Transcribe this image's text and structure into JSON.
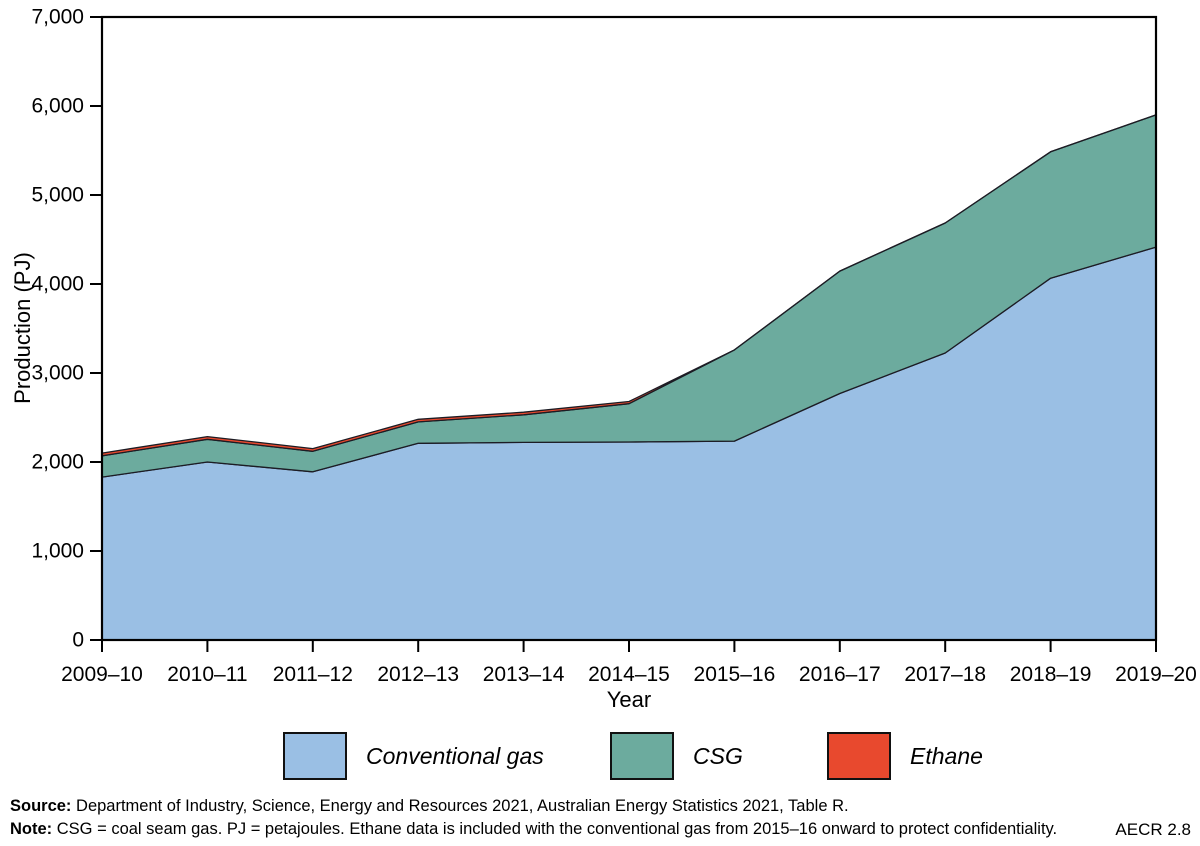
{
  "chart_data": {
    "type": "area",
    "stacked": true,
    "title": "",
    "xlabel": "Year",
    "ylabel": "Production (PJ)",
    "ylim": [
      0,
      7000
    ],
    "ytick_step": 1000,
    "grid": false,
    "legend_position": "bottom",
    "categories": [
      "2009–10",
      "2010–11",
      "2011–12",
      "2012–13",
      "2013–14",
      "2014–15",
      "2015–16",
      "2016–17",
      "2017–18",
      "2018–19",
      "2019–20"
    ],
    "series": [
      {
        "name": "Conventional gas",
        "color": "#9abfe4",
        "values": [
          1830,
          2000,
          1890,
          2210,
          2220,
          2225,
          2235,
          2770,
          3225,
          4065,
          4415
        ]
      },
      {
        "name": "CSG",
        "color": "#6cab9e",
        "values": [
          240,
          255,
          230,
          240,
          310,
          430,
          1025,
          1375,
          1460,
          1420,
          1485
        ]
      },
      {
        "name": "Ethane",
        "color": "#e8492e",
        "values": [
          30,
          30,
          30,
          30,
          30,
          25,
          0,
          0,
          0,
          0,
          0
        ]
      }
    ],
    "totals": [
      2100,
      2285,
      2150,
      2480,
      2560,
      2680,
      3260,
      4145,
      4685,
      5485,
      5900
    ],
    "outline_color": "#1c1c24",
    "axis_color": "#000000"
  },
  "footer": {
    "source_label": "Source:",
    "source_text": " Department of Industry, Science, Energy and Resources 2021, Australian Energy Statistics 2021, Table R.",
    "note_label": "Note:",
    "note_text": " CSG = coal seam gas. PJ = petajoules. Ethane data is included with the conventional gas from 2015–16 onward to protect confidentiality.",
    "figure_ref": "AECR 2.8"
  }
}
